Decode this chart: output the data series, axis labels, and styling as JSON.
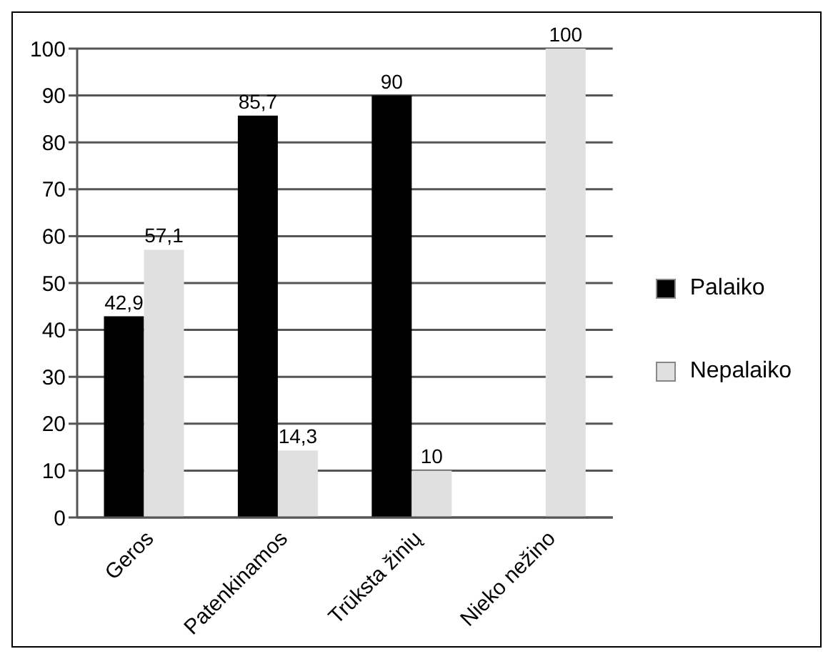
{
  "chart_data": {
    "type": "bar",
    "categories": [
      "Geros",
      "Patenkinamos",
      "Trūksta žinių",
      "Nieko nežino"
    ],
    "series": [
      {
        "name": "Palaiko",
        "color": "#000000",
        "values": [
          42.9,
          85.7,
          90,
          null
        ],
        "value_labels": [
          "42,9",
          "85,7",
          "90",
          null
        ]
      },
      {
        "name": "Nepalaiko",
        "color": "#e0e0e0",
        "values": [
          57.1,
          14.3,
          10,
          100
        ],
        "value_labels": [
          "57,1",
          "14,3",
          "10",
          "100"
        ]
      }
    ],
    "ylim": [
      0,
      100
    ],
    "yticks": [
      0,
      10,
      20,
      30,
      40,
      50,
      60,
      70,
      80,
      90,
      100
    ],
    "grid": "y",
    "legend": "right"
  }
}
